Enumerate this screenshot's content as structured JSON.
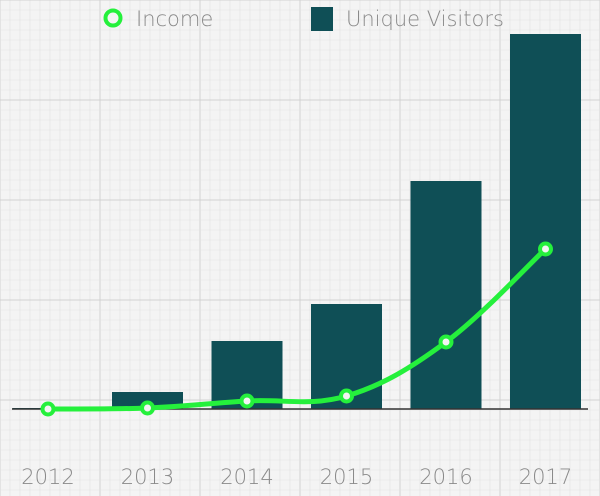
{
  "chart_data": {
    "type": "bar",
    "categories": [
      "2012",
      "2013",
      "2014",
      "2015",
      "2016",
      "2017"
    ],
    "series": [
      {
        "name": "Unique Visitors",
        "kind": "bar",
        "color": "#0f4f56",
        "values": [
          0,
          17,
          68,
          105,
          228,
          375
        ]
      },
      {
        "name": "Income",
        "kind": "line",
        "color": "#25f03c",
        "values": [
          0,
          1,
          8,
          13,
          67,
          160
        ]
      }
    ],
    "ylim": [
      0,
      400
    ],
    "grid": true,
    "legend": "top"
  },
  "legend": {
    "income_label": "Income",
    "visitors_label": "Unique Visitors"
  },
  "colors": {
    "background": "#f4f4f4",
    "grid_minor": "#e2e2e2",
    "grid_major": "#d2d2d2",
    "axis": "#333333",
    "bar": "#0f4f56",
    "line": "#25f03c",
    "text": "#8a8a8a"
  }
}
